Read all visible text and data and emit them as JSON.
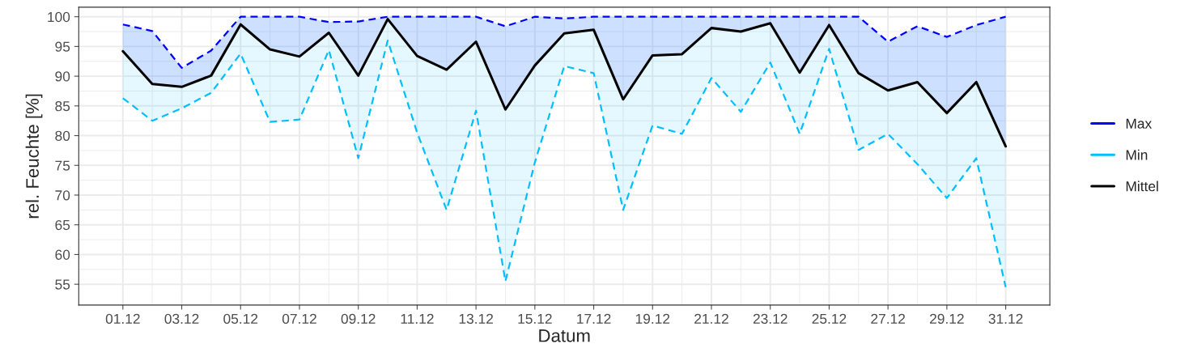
{
  "chart_data": {
    "type": "line",
    "xlabel": "Datum",
    "ylabel": "rel. Feuchte [%]",
    "categories": [
      "01.12",
      null,
      "03.12",
      null,
      "05.12",
      null,
      "07.12",
      null,
      "09.12",
      null,
      "11.12",
      null,
      "13.12",
      null,
      "15.12",
      null,
      "17.12",
      null,
      "19.12",
      null,
      "21.12",
      null,
      "23.12",
      null,
      "25.12",
      null,
      "27.12",
      null,
      "29.12",
      null,
      "31.12"
    ],
    "series": [
      {
        "name": "Max",
        "color": "#0000ff",
        "line_style": "dashed",
        "values": [
          98.7,
          97.6,
          91.4,
          94.3,
          100,
          100,
          100,
          99.1,
          99.2,
          100,
          100,
          100,
          100,
          98.4,
          100,
          99.7,
          100,
          100,
          100,
          100,
          100,
          100,
          100,
          100,
          100,
          100,
          95.8,
          98.4,
          96.6,
          98.6,
          100
        ],
        "lower": [
          94.2,
          88.7,
          88.2,
          90.1,
          98.7,
          94.5,
          93.3,
          97.3,
          90.1,
          99.6,
          93.4,
          91.1,
          95.8,
          84.4,
          91.8,
          97.2,
          97.8,
          86.1,
          93.5,
          93.7,
          98.1,
          97.5,
          98.9,
          90.6,
          98.6,
          90.5,
          87.6,
          89.0,
          83.8,
          89.0,
          78.2
        ],
        "upper": [
          98.7,
          97.6,
          91.4,
          94.3,
          100,
          100,
          100,
          99.1,
          99.2,
          100,
          100,
          100,
          100,
          98.4,
          100,
          99.7,
          100,
          100,
          100,
          100,
          100,
          100,
          100,
          100,
          100,
          100,
          95.8,
          98.4,
          96.6,
          98.6,
          100
        ]
      },
      {
        "name": "Min",
        "color": "#00bfff",
        "line_style": "dashed",
        "values": [
          86.3,
          82.5,
          84.6,
          87.2,
          93.8,
          82.3,
          82.7,
          94.4,
          76.2,
          96.0,
          80.5,
          67.5,
          84.2,
          55.5,
          75.5,
          91.7,
          90.5,
          67.5,
          81.7,
          80.3,
          89.7,
          84.0,
          92.3,
          80.3,
          94.6,
          77.6,
          80.3,
          75.2,
          69.5,
          76.2,
          54.5
        ],
        "lower": [
          86.3,
          82.5,
          84.6,
          87.2,
          93.8,
          82.3,
          82.7,
          94.4,
          76.2,
          96.0,
          80.5,
          67.5,
          84.2,
          55.5,
          75.5,
          91.7,
          90.5,
          67.5,
          81.7,
          80.3,
          89.7,
          84.0,
          92.3,
          80.3,
          94.6,
          77.6,
          80.3,
          75.2,
          69.5,
          76.2,
          54.5
        ],
        "upper": [
          98.7,
          97.6,
          91.4,
          94.3,
          100,
          100,
          100,
          99.1,
          99.2,
          100,
          100,
          100,
          100,
          98.4,
          100,
          99.7,
          100,
          100,
          100,
          100,
          100,
          100,
          100,
          100,
          100,
          100,
          95.8,
          98.4,
          96.6,
          98.6,
          100
        ]
      },
      {
        "name": "Mittel",
        "color": "#000000",
        "line_style": "solid",
        "values": [
          94.2,
          88.7,
          88.2,
          90.1,
          98.7,
          94.5,
          93.3,
          97.3,
          90.1,
          99.6,
          93.4,
          91.1,
          95.8,
          84.4,
          91.8,
          97.2,
          97.8,
          86.1,
          93.5,
          93.7,
          98.1,
          97.5,
          98.9,
          90.6,
          98.6,
          90.5,
          87.6,
          89.0,
          83.8,
          89.0,
          78.2
        ]
      }
    ],
    "ylim": [
      51.5,
      101.6
    ],
    "yticks": [
      55,
      60,
      65,
      70,
      75,
      80,
      85,
      90,
      95,
      100
    ],
    "grid": true,
    "legend": "right"
  }
}
